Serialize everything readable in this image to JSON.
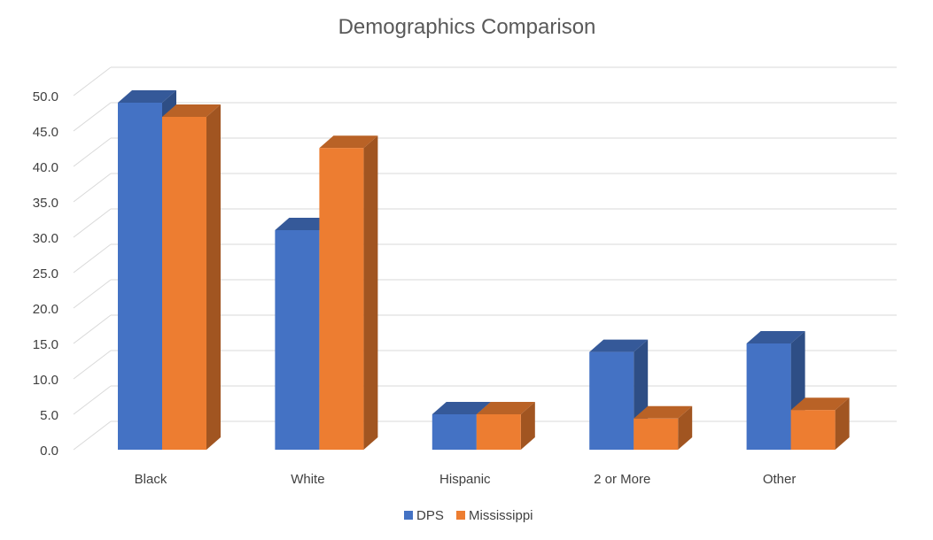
{
  "chart_data": {
    "type": "bar",
    "title": "Demographics Comparison",
    "categories": [
      "Black",
      "White",
      "Hispanic",
      "2 or More",
      "Other"
    ],
    "series": [
      {
        "name": "DPS",
        "values": [
          49.0,
          31.0,
          5.0,
          13.8,
          15.0
        ],
        "color": "#4472C4"
      },
      {
        "name": "Mississippi",
        "values": [
          47.0,
          42.6,
          5.0,
          4.4,
          5.6
        ],
        "color": "#ED7D31"
      }
    ],
    "yticks": [
      "0.0",
      "5.0",
      "10.0",
      "15.0",
      "20.0",
      "25.0",
      "30.0",
      "35.0",
      "40.0",
      "45.0",
      "50.0"
    ],
    "ylim": [
      0,
      50
    ],
    "grid": true,
    "legend": "bottom",
    "style": "3d-clustered-column"
  }
}
